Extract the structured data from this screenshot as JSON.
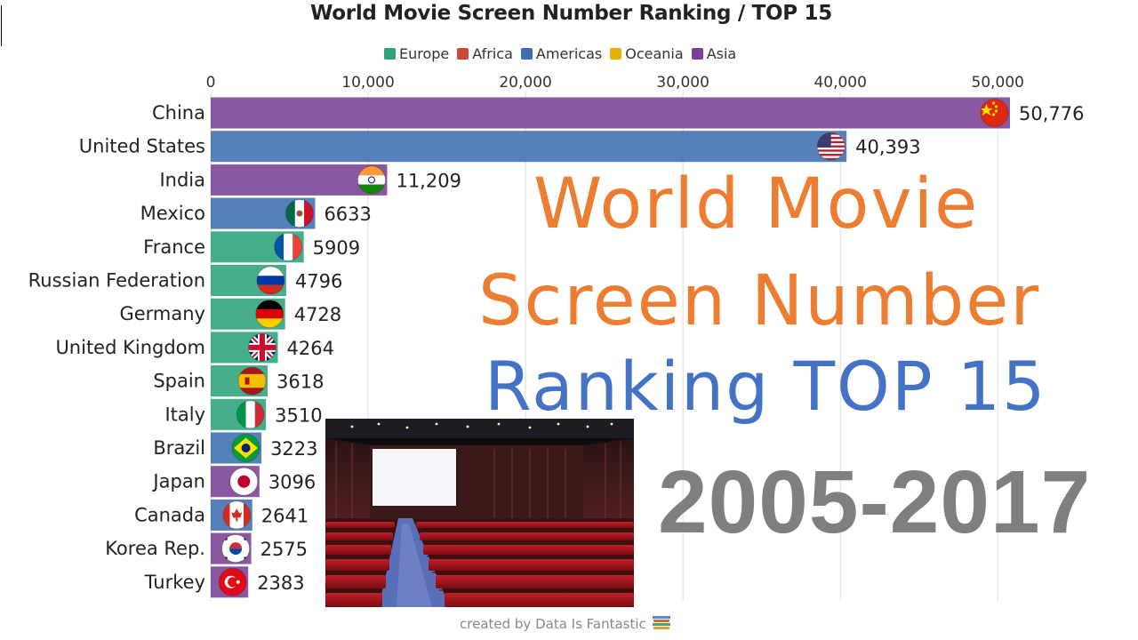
{
  "chart_data": {
    "type": "bar",
    "orientation": "horizontal",
    "title": "World Movie Screen Number Ranking / TOP 15",
    "x_ticks": [
      "0",
      "10,000",
      "20,000",
      "30,000",
      "40,000",
      "50,000"
    ],
    "xlim": [
      0,
      50776
    ],
    "grid": true,
    "legend_placement": "top-center",
    "legend": [
      {
        "name": "Europe",
        "color": "#2ca37a"
      },
      {
        "name": "Africa",
        "color": "#cc4a38"
      },
      {
        "name": "Americas",
        "color": "#3f6eb0"
      },
      {
        "name": "Oceania",
        "color": "#e5b10b"
      },
      {
        "name": "Asia",
        "color": "#7a4094"
      }
    ],
    "categories": [
      "China",
      "United States",
      "India",
      "Mexico",
      "France",
      "Russian Federation",
      "Germany",
      "United Kingdom",
      "Spain",
      "Italy",
      "Brazil",
      "Japan",
      "Canada",
      "Korea Rep.",
      "Turkey"
    ],
    "values": [
      50776,
      40393,
      11209,
      6633,
      5909,
      4796,
      4728,
      4264,
      3618,
      3510,
      3223,
      3096,
      2641,
      2575,
      2383
    ],
    "value_labels": [
      "50,776",
      "40,393",
      "11,209",
      "6633",
      "5909",
      "4796",
      "4728",
      "4264",
      "3618",
      "3510",
      "3223",
      "3096",
      "2641",
      "2575",
      "2383"
    ],
    "regions": [
      "Asia",
      "Americas",
      "Asia",
      "Americas",
      "Europe",
      "Europe",
      "Europe",
      "Europe",
      "Europe",
      "Europe",
      "Americas",
      "Asia",
      "Americas",
      "Asia",
      "Asia"
    ],
    "flags": [
      "china-flag-icon",
      "usa-flag-icon",
      "india-flag-icon",
      "mexico-flag-icon",
      "france-flag-icon",
      "russia-flag-icon",
      "germany-flag-icon",
      "uk-flag-icon",
      "spain-flag-icon",
      "italy-flag-icon",
      "brazil-flag-icon",
      "japan-flag-icon",
      "canada-flag-icon",
      "korea-flag-icon",
      "turkey-flag-icon"
    ]
  },
  "overlay": {
    "line1": "World Movie",
    "line2": "Screen Number",
    "line3": "Ranking TOP 15",
    "years": "2005-2017",
    "line1_color": "#ed7d31",
    "line3_color": "#4472c4",
    "years_color": "#7f7f7f"
  },
  "credit": "created by Data Is Fantastic",
  "credit_icon": "books-icon",
  "image": "cinema-hall-photo"
}
